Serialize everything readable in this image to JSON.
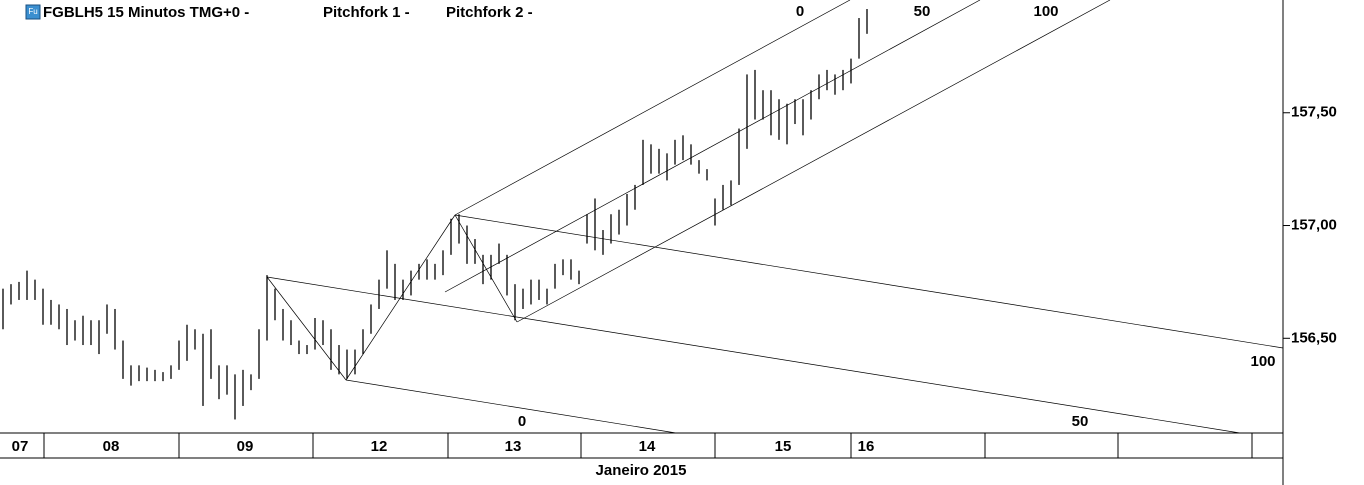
{
  "chart_data": {
    "type": "ohlc",
    "icon": "Fu",
    "title": "FGBLH5 15 Minutos TMG+0 -",
    "studies": [
      {
        "name": "Pitchfork 1 -",
        "levels": [
          0,
          50,
          100
        ]
      },
      {
        "name": "Pitchfork 2 -",
        "levels": [
          0,
          50,
          100
        ]
      }
    ],
    "categories": [
      "07",
      "08",
      "09",
      "12",
      "13",
      "14",
      "15",
      "16"
    ],
    "xlabel": "Janeiro 2015",
    "color": "#000000",
    "ylim": [
      156.08,
      158.0
    ],
    "yticks": [
      {
        "value": 156.5,
        "label": "156,50"
      },
      {
        "value": 157.0,
        "label": "157,00"
      },
      {
        "value": 157.5,
        "label": "157,50"
      }
    ],
    "high": [
      156.72,
      156.74,
      156.75,
      156.8,
      156.76,
      156.72,
      156.67,
      156.65,
      156.63,
      156.58,
      156.6,
      156.58,
      156.58,
      156.65,
      156.63,
      156.49,
      156.38,
      156.38,
      156.37,
      156.36,
      156.35,
      156.38,
      156.49,
      156.56,
      156.54,
      156.52,
      156.54,
      156.38,
      156.38,
      156.34,
      156.36,
      156.34,
      156.54,
      156.78,
      156.72,
      156.63,
      156.58,
      156.49,
      156.47,
      156.59,
      156.58,
      156.54,
      156.47,
      156.45,
      156.45,
      156.54,
      156.65,
      156.76,
      156.89,
      156.83,
      156.76,
      156.8,
      156.83,
      156.85,
      156.83,
      156.89,
      157.03,
      157.05,
      157.0,
      156.94,
      156.87,
      156.87,
      156.92,
      156.87,
      156.74,
      156.72,
      156.76,
      156.76,
      156.72,
      156.83,
      156.85,
      156.85,
      156.8,
      157.05,
      157.12,
      156.98,
      157.05,
      157.07,
      157.14,
      157.18,
      157.38,
      157.36,
      157.34,
      157.32,
      157.38,
      157.4,
      157.36,
      157.29,
      157.25,
      157.12,
      157.18,
      157.2,
      157.43,
      157.67,
      157.69,
      157.6,
      157.6,
      157.56,
      157.54,
      157.56,
      157.56,
      157.6,
      157.67,
      157.69,
      157.67,
      157.69,
      157.74,
      157.92,
      157.96
    ],
    "low": [
      156.54,
      156.65,
      156.67,
      156.67,
      156.67,
      156.56,
      156.56,
      156.54,
      156.47,
      156.49,
      156.47,
      156.47,
      156.43,
      156.52,
      156.45,
      156.32,
      156.29,
      156.31,
      156.31,
      156.31,
      156.31,
      156.32,
      156.36,
      156.4,
      156.45,
      156.2,
      156.32,
      156.23,
      156.25,
      156.14,
      156.2,
      156.27,
      156.32,
      156.49,
      156.58,
      156.49,
      156.47,
      156.43,
      156.43,
      156.45,
      156.47,
      156.36,
      156.34,
      156.32,
      156.34,
      156.43,
      156.52,
      156.63,
      156.72,
      156.67,
      156.67,
      156.69,
      156.76,
      156.76,
      156.76,
      156.78,
      156.87,
      156.92,
      156.83,
      156.83,
      156.74,
      156.76,
      156.83,
      156.69,
      156.58,
      156.63,
      156.65,
      156.67,
      156.65,
      156.72,
      156.78,
      156.76,
      156.74,
      156.92,
      156.89,
      156.87,
      156.92,
      156.96,
      157.0,
      157.07,
      157.18,
      157.23,
      157.23,
      157.2,
      157.27,
      157.29,
      157.27,
      157.23,
      157.2,
      157.0,
      157.07,
      157.09,
      157.18,
      157.34,
      157.47,
      157.47,
      157.4,
      157.38,
      157.36,
      157.45,
      157.4,
      157.47,
      157.56,
      157.6,
      157.58,
      157.6,
      157.63,
      157.74,
      157.85
    ]
  }
}
